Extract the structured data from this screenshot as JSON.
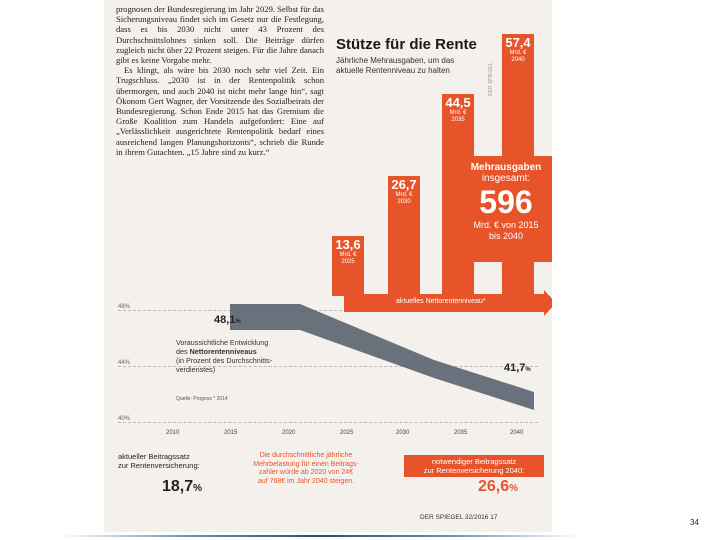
{
  "article": {
    "p1": "prognosen der Bundesregierung im Jahr 2029. Selbst für das Sicherungsniveau findet sich im Gesetz nur die Festlegung, dass es bis 2030 nicht unter 43 Prozent des Durchschnittslohnes sinken soll. Die Beiträge dürfen zugleich nicht über 22 Prozent steigen. Für die Jahre danach gibt es keine Vorgabe mehr.",
    "p2": "Es klingt, als wäre bis 2030 noch sehr viel Zeit. Ein Trugschluss. „2030 ist in der Rentenpolitik schon übermorgen, und auch 2040 ist nicht mehr lange hin“, sagt Ökonom Gert Wagner, der Vorsitzende des Sozialbeirats der Bundesregierung. Schon Ende 2015 hat das Gremium die Große Koalition zum Handeln aufgefordert: Eine auf „Verlässlichkeit ausgerichtete Rentenpolitik bedarf eines ausreichend langen Planungshorizonts“, schrieb die Runde in ihrem Gutachten. „15 Jahre sind zu kurz.“"
  },
  "graphic": {
    "title": "Stütze für die Rente",
    "subtitle": "Jährliche Mehrausgaben, um das aktuelle Rentenniveau zu halten",
    "credit": "DER SPIEGEL",
    "bars": [
      {
        "value": "13,6",
        "unit": "Mrd. €",
        "year": "2025",
        "amount": 13.6
      },
      {
        "value": "26,7",
        "unit": "Mrd. €",
        "year": "2030",
        "amount": 26.7
      },
      {
        "value": "44,5",
        "unit": "Mrd. €",
        "year": "2035",
        "amount": 44.5
      },
      {
        "value": "57,4",
        "unit": "Mrd. €",
        "year": "2040",
        "amount": 57.4
      }
    ],
    "total": {
      "line1": "Mehrausgaben",
      "line2": "insgesamt:",
      "value": "596",
      "line3": "Mrd. € von 2015",
      "line4": "bis 2040"
    },
    "arrow_label": "aktuelles Nettorentenniveau*",
    "legend": {
      "line1": "Voraussichtliche Entwicklung",
      "line2_pre": "des ",
      "line2_bold": "Nettorentenniveaus",
      "line3": "(in Prozent des Durchschnitts-",
      "line4": "verdienstes)"
    },
    "source": "Quelle: Prognos  * 2014",
    "y_ticks": [
      "48%",
      "44%",
      "40%"
    ],
    "x_ticks": [
      "2010",
      "2015",
      "2020",
      "2025",
      "2030",
      "2035",
      "2040"
    ],
    "start_value": "48,1",
    "end_value": "41,7",
    "percent": "%"
  },
  "bottom": {
    "left_label_1": "aktueller Beitragssatz",
    "left_label_2": "zur Rentenversicherung:",
    "left_value": "18,7",
    "middle_1": "Die durchschnittliche jährliche",
    "middle_2": "Mehrbelastung für einen Beitrags-",
    "middle_3": "zahler würde ab 2020 von 24€",
    "middle_4": "auf 768€ im Jahr 2040 steigen.",
    "right_label_1": "notwendiger Beitragssatz",
    "right_label_2": "zur Rentenversicherung 2040:",
    "right_value": "26,6",
    "percent": "%"
  },
  "footer": "DER SPIEGEL 32/2016  17",
  "page_number": "34",
  "colors": {
    "accent": "#e8542a",
    "trend": "#5a6470"
  }
}
